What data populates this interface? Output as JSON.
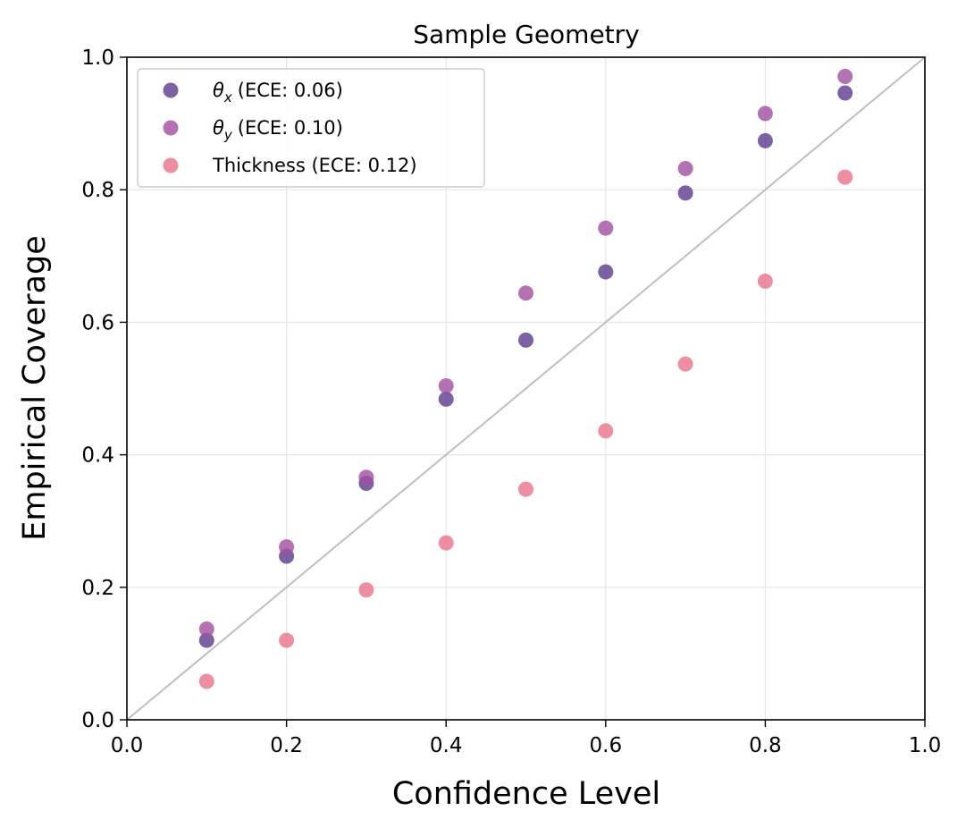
{
  "chart_data": {
    "type": "scatter",
    "title": "Sample Geometry",
    "xlabel": "Confidence Level",
    "ylabel": "Empirical Coverage",
    "xlim": [
      0.0,
      1.0
    ],
    "ylim": [
      0.0,
      1.0
    ],
    "xticks": [
      "0.0",
      "0.2",
      "0.4",
      "0.6",
      "0.8",
      "1.0"
    ],
    "yticks": [
      "0.0",
      "0.2",
      "0.4",
      "0.6",
      "0.8",
      "1.0"
    ],
    "grid": true,
    "legend_position": "top-left",
    "reference_line": {
      "x": [
        0.0,
        1.0
      ],
      "y": [
        0.0,
        1.0
      ],
      "color": "#bfbfbf"
    },
    "x": [
      0.1,
      0.2,
      0.3,
      0.4,
      0.5,
      0.6,
      0.7,
      0.8,
      0.9
    ],
    "series": [
      {
        "symbol": "θ",
        "subscript": "x",
        "label_suffix": "(ECE: 0.06)",
        "color": "#5b3a8e",
        "values": [
          0.12,
          0.247,
          0.357,
          0.484,
          0.573,
          0.676,
          0.795,
          0.874,
          0.946
        ]
      },
      {
        "symbol": "θ",
        "subscript": "y",
        "label_suffix": "(ECE: 0.10)",
        "color": "#a24f9f",
        "values": [
          0.137,
          0.261,
          0.366,
          0.504,
          0.644,
          0.742,
          0.832,
          0.915,
          0.971
        ]
      },
      {
        "symbol": "",
        "subscript": "",
        "label_suffix": "Thickness (ECE: 0.12)",
        "color": "#e8728c",
        "values": [
          0.058,
          0.12,
          0.196,
          0.267,
          0.348,
          0.436,
          0.537,
          0.662,
          0.819
        ]
      }
    ]
  }
}
